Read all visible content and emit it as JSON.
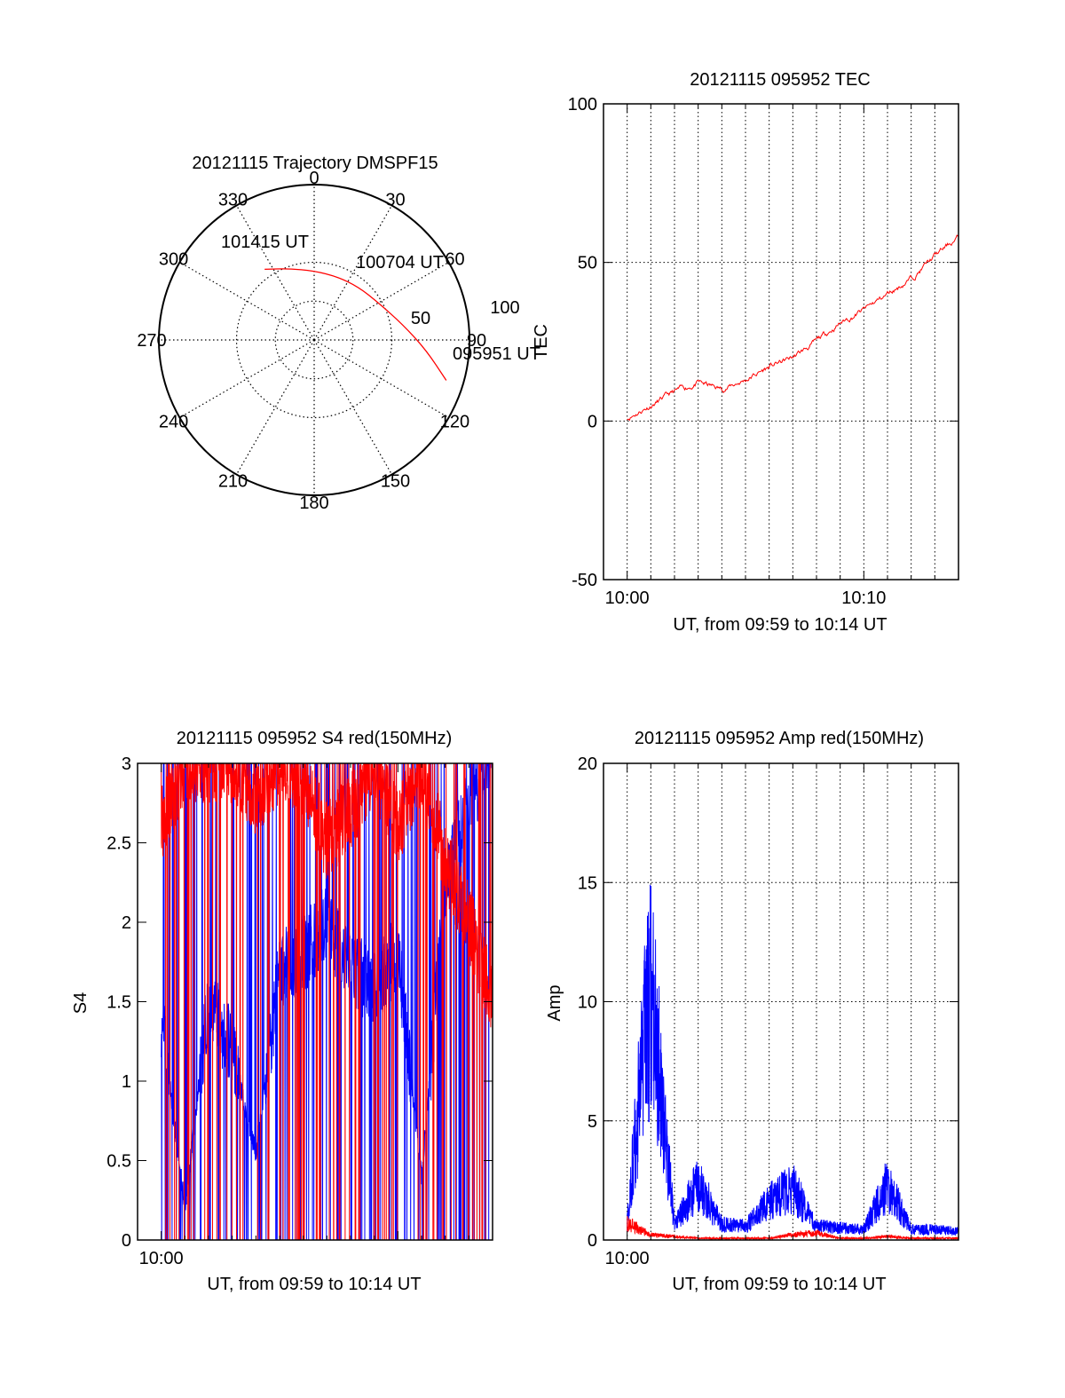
{
  "colors": {
    "red_series": "#ff0000",
    "blue_series": "#0000ff",
    "axis": "#000000",
    "grid": "#000000"
  },
  "chart_data": [
    {
      "type": "polar",
      "title": "20121115 Trajectory DMSPF15",
      "angular_ticks": [
        "0",
        "30",
        "60",
        "90",
        "120",
        "150",
        "180",
        "210",
        "240",
        "270",
        "300",
        "330"
      ],
      "radial_ticks": [
        "50",
        "100"
      ],
      "direction": "clockwise from top",
      "grid": true,
      "trajectory": [
        {
          "az": 107,
          "el": 10,
          "label": "095951 UT"
        },
        {
          "az": 95,
          "el": 25
        },
        {
          "az": 80,
          "el": 38
        },
        {
          "az": 60,
          "el": 47,
          "label": "100704 UT"
        },
        {
          "az": 40,
          "el": 50
        },
        {
          "az": 20,
          "el": 51
        },
        {
          "az": 0,
          "el": 50
        },
        {
          "az": -20,
          "el": 46
        },
        {
          "az": -35,
          "el": 40,
          "label": "101415 UT"
        }
      ]
    },
    {
      "type": "line",
      "title": "20121115 095952 TEC",
      "xlabel": "UT, from 09:59 to 10:14 UT",
      "ylabel": "TEC",
      "x_tick_labels": [
        "10:00",
        "10:10"
      ],
      "y_ticks": [
        "-50",
        "0",
        "50",
        "100"
      ],
      "xlim": [
        "09:59",
        "10:14"
      ],
      "ylim": [
        -50,
        100
      ],
      "grid": true,
      "series": [
        {
          "color": "red",
          "x": [
            "10:00",
            "10:01",
            "10:02",
            "10:03",
            "10:04",
            "10:05",
            "10:06",
            "10:07",
            "10:08",
            "10:09",
            "10:10",
            "10:11",
            "10:12",
            "10:13",
            "10:14"
          ],
          "values": [
            1,
            5,
            9,
            12,
            10,
            13,
            17,
            20,
            25,
            31,
            35,
            40,
            45,
            52,
            58
          ]
        }
      ]
    },
    {
      "type": "line",
      "title": "20121115 095952 S4 red(150MHz)",
      "xlabel": "UT, from 09:59 to 10:14 UT",
      "ylabel": "S4",
      "x_tick_labels": [
        "10:00"
      ],
      "y_ticks": [
        "0",
        "0.5",
        "1",
        "1.5",
        "2",
        "2.5",
        "3"
      ],
      "xlim": [
        "09:59",
        "10:14"
      ],
      "ylim": [
        0,
        3
      ],
      "grid": false,
      "series": [
        {
          "color": "blue",
          "x": [
            "10:00",
            "10:01",
            "10:02",
            "10:03",
            "10:04",
            "10:05",
            "10:06",
            "10:07",
            "10:08",
            "10:09",
            "10:10",
            "10:11",
            "10:12",
            "10:13",
            "10:14"
          ],
          "values": [
            1.4,
            0.2,
            1.5,
            1.2,
            0.55,
            1.7,
            1.8,
            2.0,
            1.7,
            1.6,
            1.8,
            0.4,
            2.2,
            2.8,
            3.0
          ]
        },
        {
          "color": "red",
          "x": [
            "10:00",
            "10:01",
            "10:02",
            "10:03",
            "10:04",
            "10:05",
            "10:06",
            "10:07",
            "10:08",
            "10:09",
            "10:10",
            "10:11",
            "10:12",
            "10:13",
            "10:14"
          ],
          "values": [
            2.6,
            3.0,
            3.0,
            3.0,
            2.8,
            3.0,
            2.9,
            2.5,
            2.7,
            3.0,
            2.6,
            3.0,
            2.4,
            2.0,
            1.5
          ]
        }
      ]
    },
    {
      "type": "line",
      "title": "20121115 095952 Amp red(150MHz)",
      "xlabel": "UT, from 09:59 to 10:14 UT",
      "ylabel": "Amp",
      "x_tick_labels": [
        "10:00"
      ],
      "y_ticks": [
        "0",
        "5",
        "10",
        "15",
        "20"
      ],
      "xlim": [
        "09:59",
        "10:14"
      ],
      "ylim": [
        0,
        20
      ],
      "grid": true,
      "series": [
        {
          "color": "blue",
          "x": [
            "10:00",
            "10:01",
            "10:02",
            "10:03",
            "10:04",
            "10:05",
            "10:06",
            "10:07",
            "10:08",
            "10:09",
            "10:10",
            "10:11",
            "10:12",
            "10:13",
            "10:14"
          ],
          "values": [
            1,
            15,
            0.8,
            3.3,
            0.9,
            0.8,
            2.2,
            3.0,
            0.8,
            0.7,
            0.6,
            3.2,
            0.6,
            0.6,
            0.5
          ]
        },
        {
          "color": "red",
          "x": [
            "10:00",
            "10:01",
            "10:02",
            "10:03",
            "10:04",
            "10:05",
            "10:06",
            "10:07",
            "10:08",
            "10:09",
            "10:10",
            "10:11",
            "10:12",
            "10:13",
            "10:14"
          ],
          "values": [
            1,
            0.3,
            0.2,
            0.1,
            0.1,
            0.1,
            0.1,
            0.3,
            0.4,
            0.1,
            0.1,
            0.2,
            0.1,
            0.1,
            0.1
          ]
        }
      ]
    }
  ]
}
